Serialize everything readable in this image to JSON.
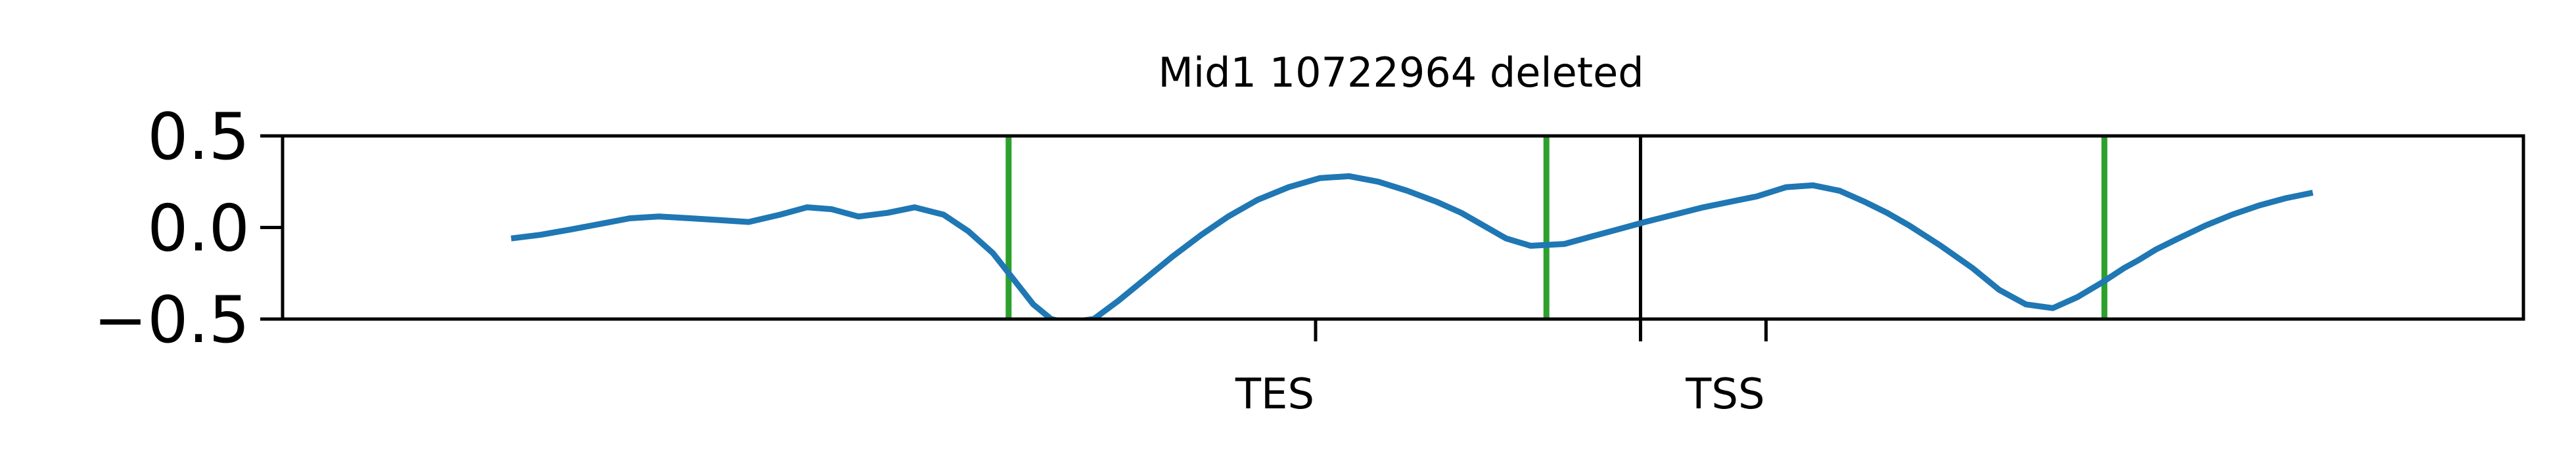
{
  "chart_data": {
    "type": "line",
    "title": "Mid1 10722964 deleted",
    "xlabel": "",
    "ylabel": "",
    "xlim": [
      0,
      100
    ],
    "ylim": [
      -0.5,
      0.5
    ],
    "yticks": [
      {
        "value": 0.5,
        "label": "0.5"
      },
      {
        "value": 0.0,
        "label": "0.0"
      },
      {
        "value": -0.5,
        "label": "−0.5"
      }
    ],
    "xticks": [
      {
        "value": 46.1,
        "label": "TES"
      },
      {
        "value": 60.6,
        "label": ""
      },
      {
        "value": 66.2,
        "label": "TSS"
      }
    ],
    "grid": false,
    "legend": "none",
    "series": [
      {
        "color": "#1f77b4",
        "x": [
          10.2,
          11.5,
          12.9,
          14.2,
          15.5,
          16.8,
          18.2,
          19.5,
          20.8,
          22.2,
          23.4,
          24.5,
          25.7,
          27.0,
          28.2,
          29.5,
          30.6,
          31.7,
          32.6,
          33.5,
          34.3,
          35.0,
          36.2,
          37.3,
          38.5,
          39.7,
          41.0,
          42.2,
          43.5,
          44.9,
          46.3,
          47.6,
          48.9,
          50.2,
          51.5,
          52.6,
          53.6,
          54.6,
          55.7,
          57.2,
          58.4,
          59.6,
          60.8,
          62.1,
          63.4,
          64.6,
          65.8,
          67.1,
          68.3,
          69.5,
          70.6,
          71.6,
          72.6,
          74.0,
          75.4,
          76.6,
          77.8,
          79.0,
          80.1,
          81.2,
          82.2,
          82.8,
          83.6,
          84.6,
          85.8,
          87.0,
          88.2,
          89.4,
          90.6
        ],
        "y": [
          -0.06,
          -0.04,
          -0.01,
          0.02,
          0.05,
          0.06,
          0.05,
          0.04,
          0.03,
          0.07,
          0.11,
          0.1,
          0.06,
          0.08,
          0.11,
          0.07,
          -0.02,
          -0.14,
          -0.28,
          -0.42,
          -0.5,
          -0.52,
          -0.5,
          -0.4,
          -0.28,
          -0.16,
          -0.04,
          0.06,
          0.15,
          0.22,
          0.27,
          0.28,
          0.25,
          0.2,
          0.14,
          0.08,
          0.01,
          -0.06,
          -0.1,
          -0.09,
          -0.05,
          -0.01,
          0.03,
          0.07,
          0.11,
          0.14,
          0.17,
          0.22,
          0.23,
          0.2,
          0.14,
          0.08,
          0.01,
          -0.1,
          -0.22,
          -0.34,
          -0.42,
          -0.44,
          -0.38,
          -0.3,
          -0.22,
          -0.18,
          -0.12,
          -0.06,
          0.01,
          0.07,
          0.12,
          0.16,
          0.19
        ]
      }
    ],
    "vlines": [
      {
        "x": 32.4,
        "color": "#2ca02c"
      },
      {
        "x": 56.4,
        "color": "#2ca02c"
      },
      {
        "x": 60.6,
        "color": "#000000"
      },
      {
        "x": 81.3,
        "color": "#2ca02c"
      }
    ]
  }
}
